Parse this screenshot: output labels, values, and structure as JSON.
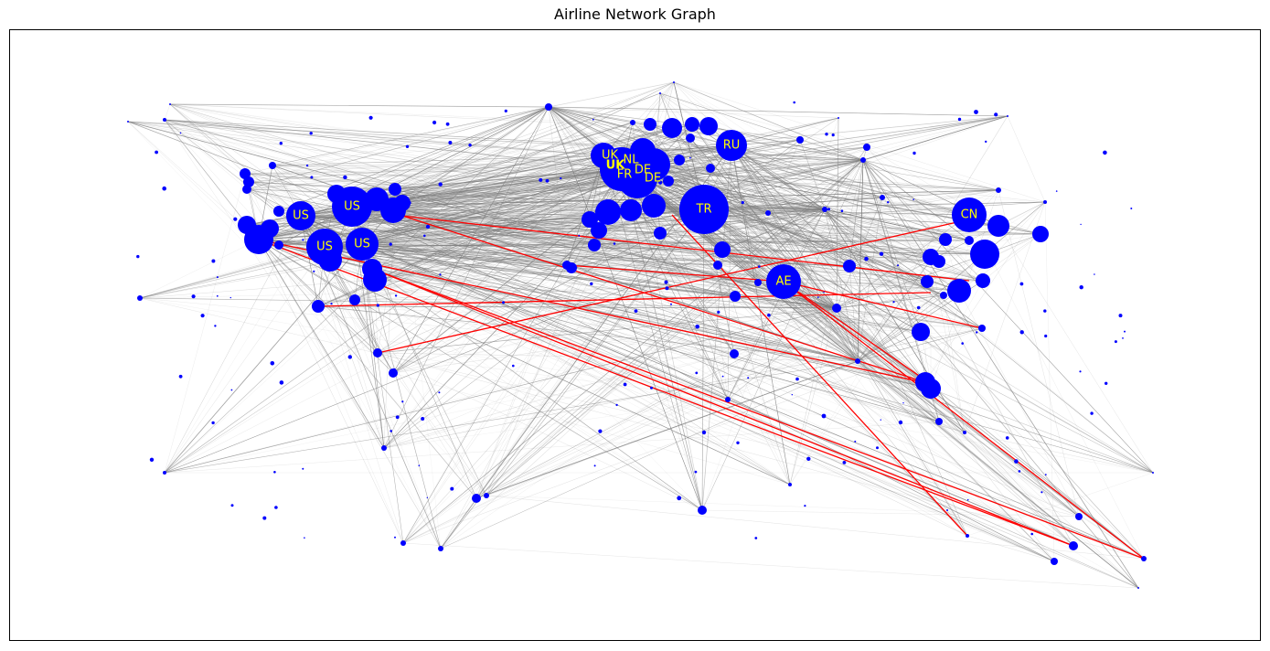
{
  "title": "Airline Network Graph",
  "colors": {
    "node": "#0000ff",
    "edge": "#808080",
    "highlight_edge": "#ff0000",
    "label": "#ffff00",
    "frame": "#000000"
  },
  "labels": {
    "us1": "US",
    "us2": "US",
    "us3": "US",
    "us4": "US",
    "uk1": "UK",
    "uk2": "UK",
    "nl": "NL",
    "fr": "FR",
    "de1": "DE",
    "de2": "DE",
    "ru": "RU",
    "tr": "TR",
    "ae": "AE",
    "cn": "CN"
  }
}
